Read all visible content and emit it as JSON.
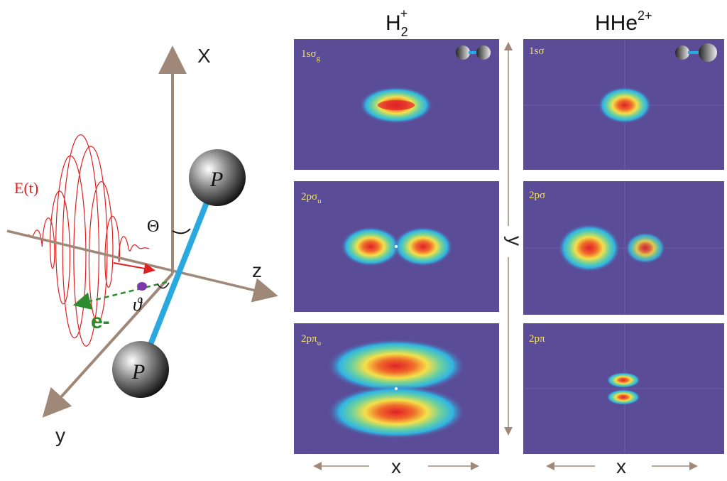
{
  "columns": {
    "h2": {
      "base": "H",
      "sub": "2",
      "sup": "+"
    },
    "hhe": {
      "base": "HHe",
      "sup": "2+"
    }
  },
  "panels": {
    "h2_1": {
      "base": "1s",
      "greek": "σ",
      "sub": "g"
    },
    "h2_2": {
      "base": "2p",
      "greek": "σ",
      "sub": "u"
    },
    "h2_3": {
      "base": "2p",
      "greek": "π",
      "sub": "u"
    },
    "hhe_1": {
      "base": "1s",
      "greek": "σ"
    },
    "hhe_2": {
      "base": "2p",
      "greek": "σ"
    },
    "hhe_3": {
      "base": "2p",
      "greek": "π"
    }
  },
  "axes": {
    "x_left": "x",
    "x_right": "x",
    "y_mid": "y"
  },
  "geometry_diagram": {
    "axis_x": "X",
    "axis_y": "y",
    "axis_z": "z",
    "field": "E(t)",
    "electron": "e-",
    "angle_theta": "Θ",
    "angle_vartheta": "ϑ",
    "nucleus_top": "P",
    "nucleus_bottom": "P"
  },
  "colors": {
    "panel_bg": "#5b4c98",
    "bond": "#2aa8e0",
    "axis_arrow": "#a08878",
    "field_wave": "#e02020",
    "electron_path": "#2e8b2e",
    "label_gold": "#f2e06a"
  }
}
